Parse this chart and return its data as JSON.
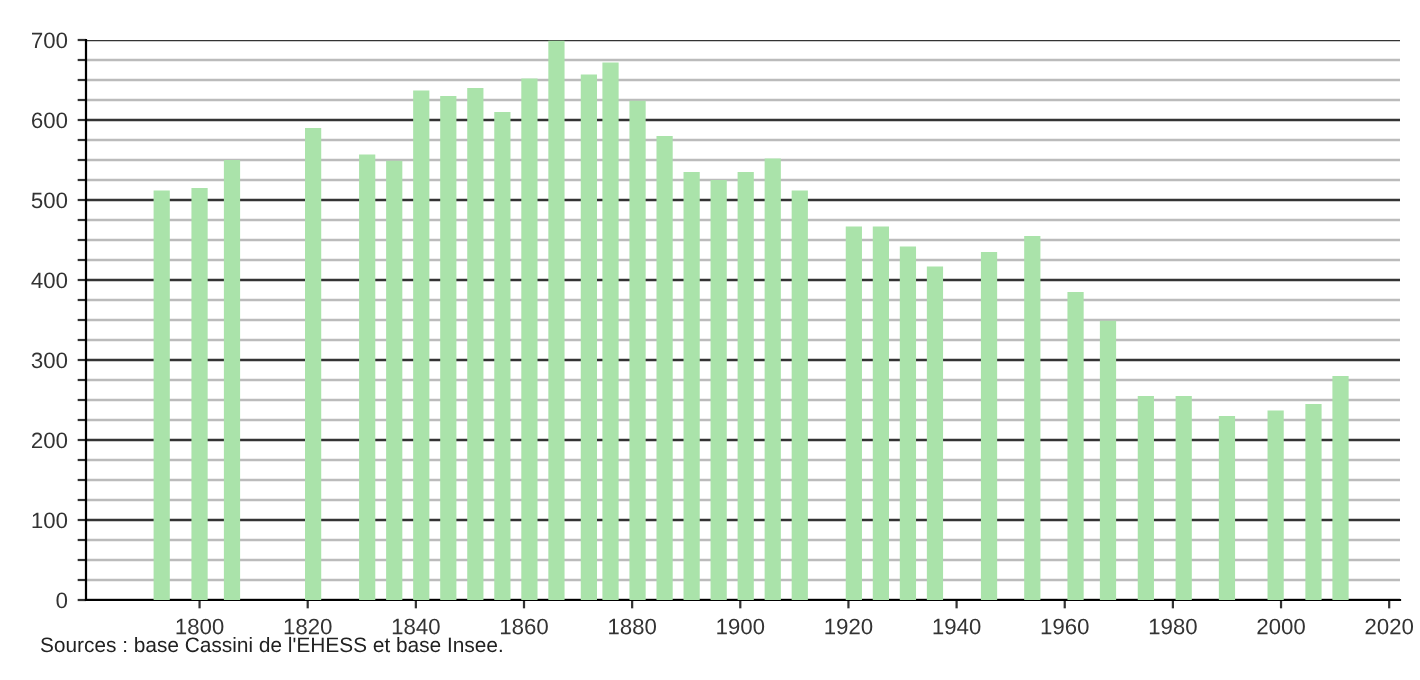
{
  "chart_data": {
    "type": "bar",
    "color": "#aae3aa",
    "x": [
      1793,
      1800,
      1806,
      1821,
      1831,
      1836,
      1841,
      1846,
      1851,
      1856,
      1861,
      1866,
      1872,
      1876,
      1881,
      1886,
      1891,
      1896,
      1901,
      1906,
      1911,
      1921,
      1926,
      1931,
      1936,
      1946,
      1954,
      1962,
      1968,
      1975,
      1982,
      1990,
      1999,
      2006,
      2011
    ],
    "values": [
      512,
      515,
      550,
      590,
      557,
      549,
      637,
      630,
      640,
      610,
      652,
      699,
      657,
      672,
      624,
      580,
      535,
      525,
      535,
      552,
      512,
      467,
      467,
      442,
      417,
      435,
      455,
      385,
      349,
      255,
      255,
      230,
      237,
      245,
      280
    ],
    "xlim": [
      1779,
      2022
    ],
    "xticks": [
      1800,
      1820,
      1840,
      1860,
      1880,
      1900,
      1920,
      1940,
      1960,
      1980,
      2000,
      2020
    ],
    "ylim": [
      0,
      700
    ],
    "yticks": [
      0,
      {
        "value": 25,
        "label": null
      },
      {
        "value": 50,
        "label": null
      },
      {
        "value": 75,
        "label": null
      },
      100,
      {
        "value": 125,
        "label": null
      },
      {
        "value": 150,
        "label": null
      },
      {
        "value": 175,
        "label": null
      },
      200,
      {
        "value": 225,
        "label": null
      },
      {
        "value": 250,
        "label": null
      },
      {
        "value": 275,
        "label": null
      },
      300,
      {
        "value": 325,
        "label": null
      },
      {
        "value": 350,
        "label": null
      },
      {
        "value": 375,
        "label": null
      },
      400,
      {
        "value": 425,
        "label": null
      },
      {
        "value": 450,
        "label": null
      },
      {
        "value": 475,
        "label": null
      },
      500,
      {
        "value": 525,
        "label": null
      },
      {
        "value": 550,
        "label": null
      },
      {
        "value": 575,
        "label": null
      },
      600,
      {
        "value": 625,
        "label": null
      },
      {
        "value": 650,
        "label": null
      },
      {
        "value": 675,
        "label": null
      },
      700
    ],
    "grid": "y",
    "annotations": [
      "Sources : base Cassini de l'EHESS et base Insee."
    ]
  }
}
